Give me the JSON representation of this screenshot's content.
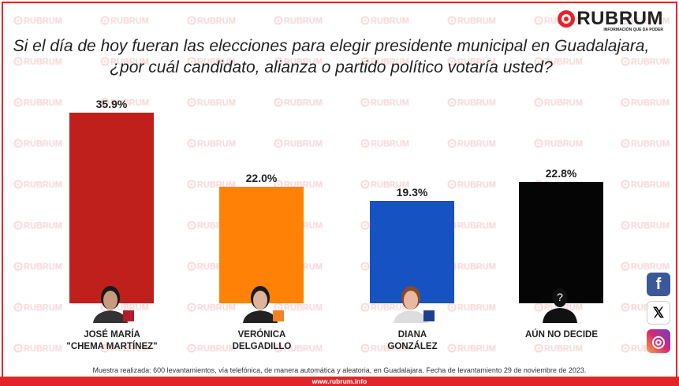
{
  "brand": {
    "name": "RUBRUM",
    "tagline": "INFORMACIÓN QUE DA PODER",
    "watermark": "RUBRUM",
    "url": "www.rubrum.info"
  },
  "colors": {
    "red": "#c0201b",
    "orange": "#ff8207",
    "blue": "#1752c3",
    "black": "#050505",
    "accent": "#e0262b"
  },
  "chart_data": {
    "type": "bar",
    "title": "Si el día de hoy fueran las elecciones para elegir presidente municipal en Guadalajara, ¿por cuál candidato, alianza o partido político votaría usted?",
    "categories": [
      "JOSÉ MARÍA \"CHEMA MARTÍNEZ\"",
      "VERÓNICA DELGADILLO",
      "DIANA GONZÁLEZ",
      "AÚN NO DECIDE"
    ],
    "name_lines": [
      [
        "JOSÉ MARÍA",
        "\"CHEMA MARTÍNEZ\""
      ],
      [
        "VERÓNICA",
        "DELGADILLO"
      ],
      [
        "DIANA",
        "GONZÁLEZ"
      ],
      [
        "AÚN NO DECIDE",
        ""
      ]
    ],
    "values": [
      35.9,
      22.0,
      19.3,
      22.8
    ],
    "labels": [
      "35.9%",
      "22.0%",
      "19.3%",
      "22.8%"
    ],
    "bar_colors": [
      "#c0201b",
      "#ff8207",
      "#1752c3",
      "#050505"
    ],
    "ylim": [
      0,
      35.9
    ],
    "xlabel": "",
    "ylabel": "",
    "grid": false
  },
  "footnote": "Muestra realizada: 600 levantamientos, vía telefónica, de manera automática y aleatoria, en Guadalajara. Fecha de levantamiento 29 de noviembre de 2023.",
  "social": [
    {
      "icon": "facebook-icon",
      "glyph": "f"
    },
    {
      "icon": "x-icon",
      "glyph": "𝕏"
    },
    {
      "icon": "instagram-icon",
      "glyph": "◎"
    }
  ],
  "unknown_glyph": "?"
}
